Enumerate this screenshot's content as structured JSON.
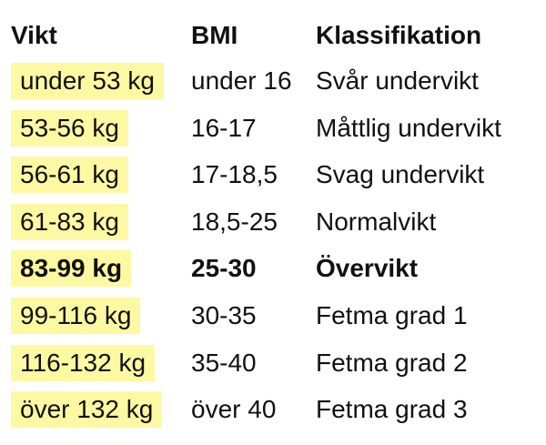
{
  "table": {
    "header": [
      "Vikt",
      "BMI",
      "Klassifikation"
    ],
    "rows": [
      [
        "under 53 kg",
        "under 16",
        "Svår undervikt"
      ],
      [
        "53-56 kg",
        "16-17",
        "Måttlig undervikt"
      ],
      [
        "56-61 kg",
        "17-18,5",
        "Svag undervikt"
      ],
      [
        "61-83 kg",
        "18,5-25",
        "Normalvikt"
      ],
      [
        "83-99 kg",
        "25-30",
        "Övervikt"
      ],
      [
        "99-116 kg",
        "30-35",
        "Fetma grad 1"
      ],
      [
        "116-132 kg",
        "35-40",
        "Fetma grad 2"
      ],
      [
        "över 132 kg",
        "över 40",
        "Fetma grad 3"
      ]
    ]
  }
}
